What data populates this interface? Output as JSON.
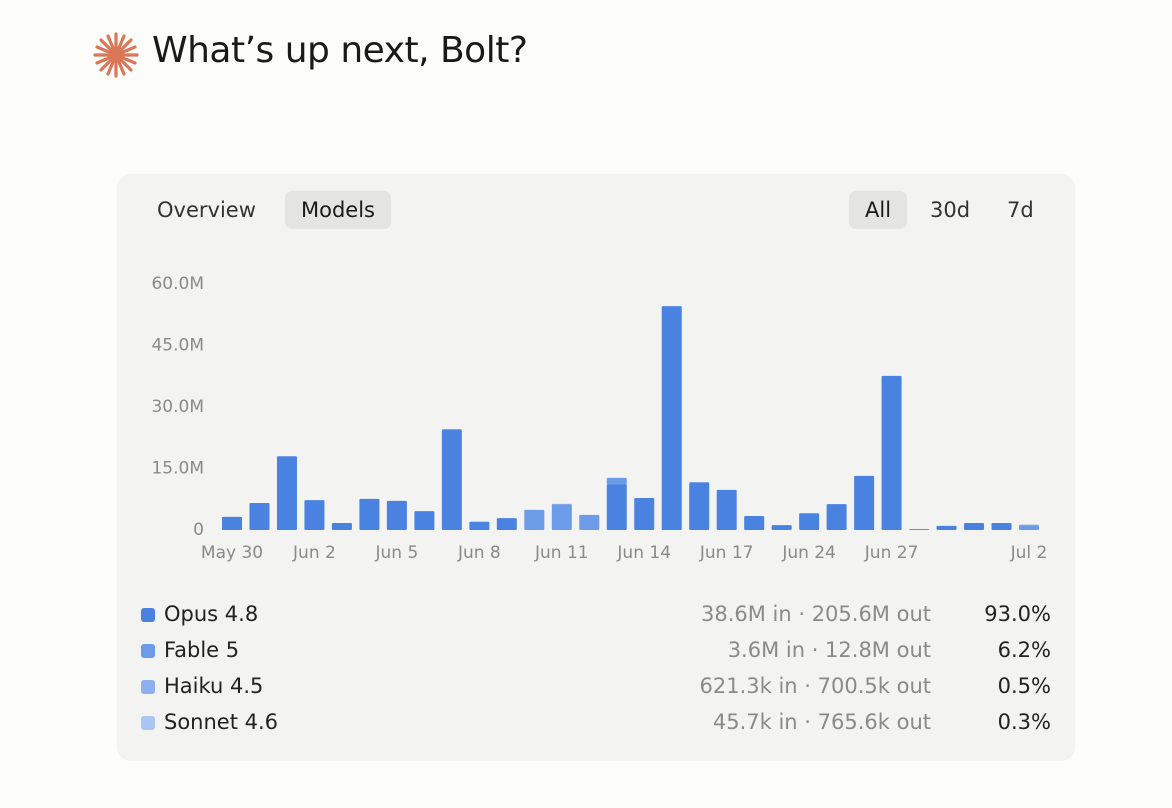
{
  "header": {
    "title": "What’s up next, Bolt?"
  },
  "tabs": {
    "views": [
      "Overview",
      "Models"
    ],
    "ranges": [
      "All",
      "30d",
      "7d"
    ]
  },
  "chart_data": {
    "type": "stacked-bar",
    "categories": [
      "May 30",
      null,
      null,
      "Jun 2",
      null,
      null,
      "Jun 5",
      null,
      null,
      "Jun 8",
      null,
      null,
      "Jun 11",
      null,
      null,
      "Jun 14",
      null,
      null,
      "Jun 17",
      null,
      null,
      "Jun 24",
      null,
      null,
      "Jun 27",
      null,
      null,
      null,
      null,
      "Jul 2"
    ],
    "series": [
      {
        "name": "Opus 4.8",
        "color": "#4a82e2",
        "values": [
          3200000,
          6600000,
          18000000,
          7300000,
          1700000,
          7600000,
          7100000,
          4600000,
          24400000,
          2000000,
          2900000,
          0,
          0,
          0,
          11200000,
          7800000,
          54600000,
          11500000,
          9800000,
          3400000,
          1200000,
          4100000,
          6300000,
          13200000,
          37600000,
          200000,
          1000000,
          1700000,
          1700000,
          0
        ]
      },
      {
        "name": "Fable 5",
        "color": "#6c9be7",
        "values": [
          0,
          0,
          0,
          0,
          0,
          0,
          0,
          0,
          200000,
          0,
          0,
          4900000,
          6300000,
          3700000,
          1500000,
          0,
          0,
          200000,
          0,
          0,
          0,
          0,
          0,
          0,
          0,
          0,
          0,
          0,
          0,
          1200000
        ]
      },
      {
        "name": "Haiku 4.5",
        "color": "#8cb1ee",
        "values": [
          0,
          0,
          0,
          0,
          0,
          0,
          0,
          0,
          0,
          0,
          0,
          0,
          0,
          0,
          0,
          0,
          0,
          0,
          0,
          0,
          0,
          0,
          0,
          0,
          0,
          0,
          0,
          0,
          0,
          100000
        ]
      },
      {
        "name": "Sonnet 4.6",
        "color": "#a9c6f3",
        "values": [
          0,
          0,
          0,
          0,
          0,
          0,
          0,
          0,
          0,
          0,
          0,
          0,
          100000,
          0,
          0,
          0,
          0,
          0,
          0,
          0,
          0,
          0,
          0,
          0,
          0,
          0,
          0,
          0,
          0,
          0
        ]
      }
    ],
    "ylim": [
      0,
      60000000
    ],
    "yticks": [
      {
        "value": 0,
        "label": "0"
      },
      {
        "value": 15000000,
        "label": "15.0M"
      },
      {
        "value": 30000000,
        "label": "30.0M"
      },
      {
        "value": 45000000,
        "label": "45.0M"
      },
      {
        "value": 60000000,
        "label": "60.0M"
      }
    ],
    "grid": false
  },
  "usage": [
    {
      "detail": "38.6M in · 205.6M out",
      "share": "93.0%"
    },
    {
      "detail": "3.6M in · 12.8M out",
      "share": "6.2%"
    },
    {
      "detail": "621.3k in · 700.5k out",
      "share": "0.5%"
    },
    {
      "detail": "45.7k in · 765.6k out",
      "share": "0.3%"
    }
  ]
}
